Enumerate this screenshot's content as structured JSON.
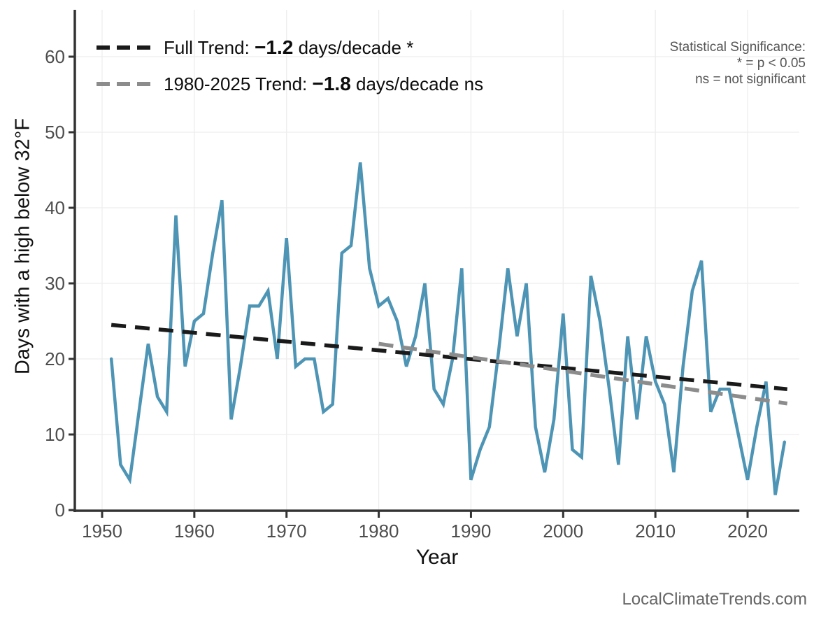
{
  "chart_data": {
    "type": "line",
    "title": "",
    "xlabel": "Year",
    "ylabel": "Days with a high below 32°F",
    "x_ticks": [
      1950,
      1960,
      1970,
      1980,
      1990,
      2000,
      2010,
      2020
    ],
    "y_ticks": [
      0,
      10,
      20,
      30,
      40,
      50,
      60
    ],
    "xlim": [
      1947,
      2026
    ],
    "ylim": [
      0,
      66
    ],
    "grid": true,
    "legend_position": "top-left",
    "series": [
      {
        "name": "days-below-32F",
        "color": "#4e95b5",
        "x_start": 1951,
        "values": [
          20,
          6,
          4,
          13,
          22,
          15,
          13,
          39,
          19,
          25,
          26,
          34,
          41,
          12,
          19,
          27,
          27,
          29,
          20,
          36,
          19,
          20,
          20,
          13,
          14,
          34,
          35,
          46,
          32,
          27,
          28,
          25,
          19,
          23,
          30,
          16,
          14,
          20,
          32,
          4,
          8,
          11,
          21,
          32,
          23,
          30,
          11,
          5,
          12,
          26,
          8,
          7,
          31,
          25,
          16,
          6,
          23,
          12,
          23,
          17,
          14,
          5,
          19,
          29,
          33,
          13,
          16,
          16,
          10,
          4,
          11,
          17,
          2,
          9
        ]
      }
    ],
    "trend_lines": [
      {
        "name": "full-trend",
        "color": "#1a1a1a",
        "x": [
          1951,
          2024.3
        ],
        "y": [
          24.5,
          16.0
        ],
        "label": {
          "prefix": "Full Trend: ",
          "value": "−1.2",
          "suffix": " days/decade *"
        }
      },
      {
        "name": "recent-trend",
        "color": "#8c8c8c",
        "x": [
          1980,
          2024.3
        ],
        "y": [
          22.0,
          14.1
        ],
        "label": {
          "prefix": "1980-2025 Trend: ",
          "value": "−1.8",
          "suffix": " days/decade ns"
        }
      }
    ]
  },
  "significance_note": {
    "line1": "Statistical Significance:",
    "line2": "* = p < 0.05",
    "line3": "ns = not significant"
  },
  "footer": {
    "watermark": "LocalClimateTrends.com"
  },
  "colors": {
    "grid": "#ededed",
    "spine": "#333333",
    "tick_label": "#4d4d4d",
    "axis_title": "#111111",
    "note_text": "#555555",
    "watermark_text": "#666666"
  }
}
